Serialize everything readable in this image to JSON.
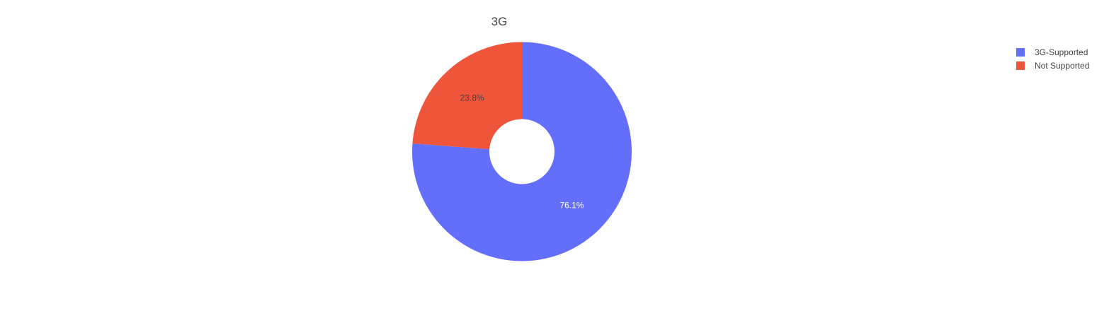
{
  "chart_data": {
    "type": "pie",
    "title": "3G",
    "hole": true,
    "legend_position": "top-right",
    "slices": [
      {
        "name": "3G-Supported",
        "percent": 76.1,
        "label": "76.1%",
        "color": "#636efa",
        "label_color": "#ffffff"
      },
      {
        "name": "Not Supported",
        "percent": 23.8,
        "label": "23.8%",
        "color": "#ef553b",
        "label_color": "#444444"
      }
    ]
  }
}
